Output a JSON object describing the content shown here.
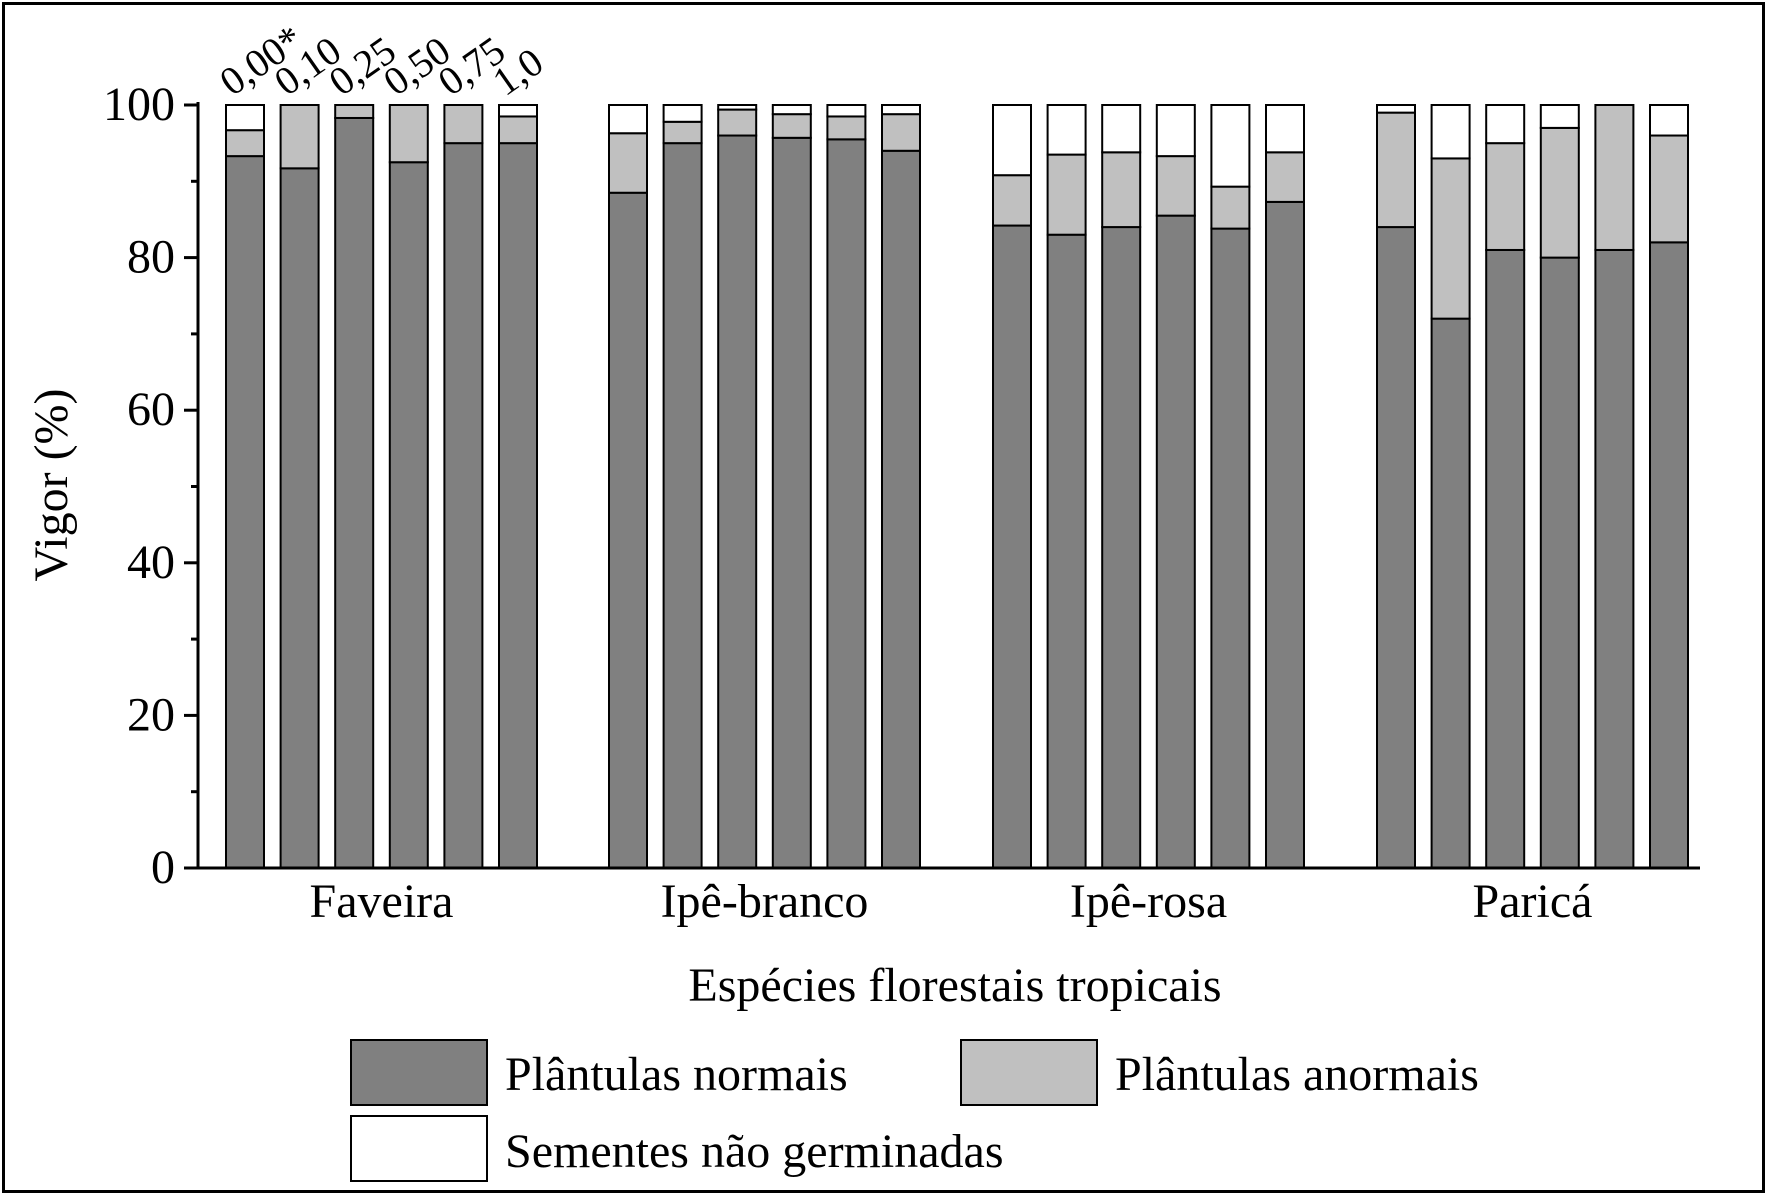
{
  "chart_data": {
    "type": "bar",
    "stacked": true,
    "ylabel": "Vigor (%)",
    "xlabel": "Espécies florestais tropicais",
    "ylim": [
      0,
      100
    ],
    "yticks": [
      0,
      20,
      40,
      60,
      80,
      100
    ],
    "categories": [
      "Faveira",
      "Ipê-branco",
      "Ipê-rosa",
      "Paricá"
    ],
    "bar_labels": [
      "0,00*",
      "0,10",
      "0,25",
      "0,50",
      "0,75",
      "1,0"
    ],
    "legend_position": "bottom",
    "series": [
      {
        "name": "Plântulas normais",
        "color": "#808080",
        "values": [
          [
            93.3,
            91.7,
            98.3,
            92.5,
            95.0,
            95.0
          ],
          [
            88.5,
            95.0,
            96.0,
            95.7,
            95.5,
            94.0
          ],
          [
            84.2,
            83.0,
            84.0,
            85.5,
            83.8,
            87.3
          ],
          [
            84.0,
            72.0,
            81.0,
            80.0,
            81.0,
            82.0
          ]
        ]
      },
      {
        "name": "Plântulas anormais",
        "color": "#c0c0c0",
        "values": [
          [
            3.4,
            8.3,
            1.7,
            7.5,
            5.0,
            3.5
          ],
          [
            7.8,
            2.8,
            3.4,
            3.1,
            3.0,
            4.8
          ],
          [
            6.6,
            10.5,
            9.8,
            7.8,
            5.5,
            6.5
          ],
          [
            15.0,
            21.0,
            14.0,
            17.0,
            19.0,
            14.0
          ]
        ]
      },
      {
        "name": "Sementes não germinadas",
        "color": "#ffffff",
        "values": [
          [
            3.3,
            0.0,
            0.0,
            0.0,
            0.0,
            1.5
          ],
          [
            3.7,
            2.2,
            0.6,
            1.2,
            1.5,
            1.2
          ],
          [
            9.2,
            6.5,
            6.2,
            6.7,
            10.7,
            6.2
          ],
          [
            1.0,
            7.0,
            5.0,
            3.0,
            0.0,
            4.0
          ]
        ]
      }
    ]
  }
}
